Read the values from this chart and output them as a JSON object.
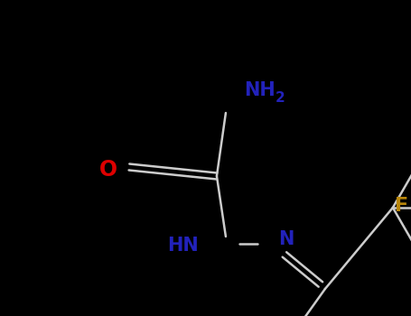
{
  "background_color": "#000000",
  "bond_color": "#ffffff",
  "bond_width": 2.0,
  "figsize": [
    4.55,
    3.5
  ],
  "dpi": 100,
  "colors": {
    "NH2": "#2222bb",
    "O": "#dd0000",
    "HN_N": "#2222bb",
    "F": "#b8860b",
    "bond": "#cccccc"
  }
}
